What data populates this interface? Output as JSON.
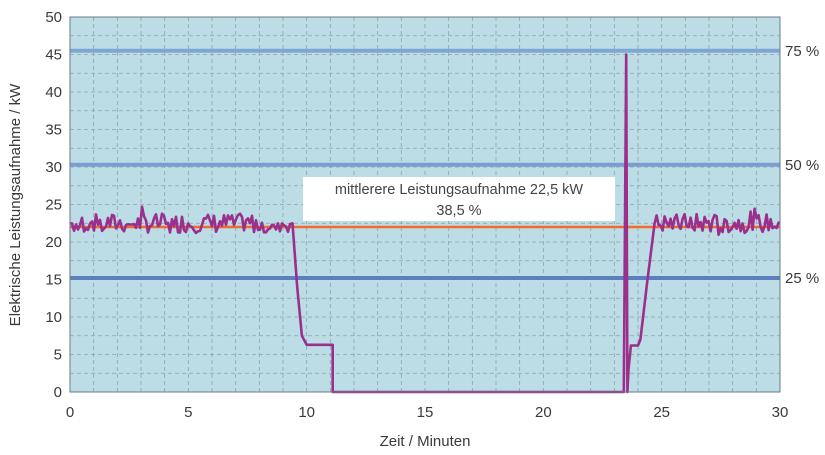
{
  "chart_data": {
    "type": "line",
    "title": "",
    "xlabel": "Zeit / Minuten",
    "ylabel": "Elektrische Leistungsaufnahme / kW",
    "xlim": [
      0,
      30
    ],
    "ylim": [
      0,
      50
    ],
    "x_ticks": [
      0,
      5,
      10,
      15,
      20,
      25,
      30
    ],
    "y_ticks": [
      0,
      5,
      10,
      15,
      20,
      25,
      30,
      35,
      40,
      45,
      50
    ],
    "grid": true,
    "background_color": "#bcdde6",
    "series": [
      {
        "color": "#9b2f8c",
        "x": [
          0,
          9.4,
          9.6,
          9.8,
          10.0,
          11.1,
          11.1,
          23.4,
          23.5,
          23.55,
          23.6,
          23.7,
          24.0,
          24.1,
          24.4,
          24.7,
          30
        ],
        "y": [
          22.5,
          22.5,
          14,
          7.5,
          6.3,
          6.3,
          0,
          0,
          45,
          0,
          3,
          6.2,
          6.2,
          7,
          15,
          22.5,
          22.5
        ]
      }
    ],
    "reference_lines": [
      {
        "value": 45.5,
        "label": "75 %",
        "color": "#7fa7d6"
      },
      {
        "value": 30.3,
        "label": "50 %",
        "color": "#7b9ed0"
      },
      {
        "value": 15.2,
        "label": "25 %",
        "color": "#5c7fbd"
      },
      {
        "value": 22.0,
        "label": "",
        "color": "#f26b2d"
      }
    ],
    "annotations": [
      {
        "line1": "mittlerere Leistungsaufnahme 22,5 kW",
        "line2": "38,5 %"
      }
    ]
  }
}
